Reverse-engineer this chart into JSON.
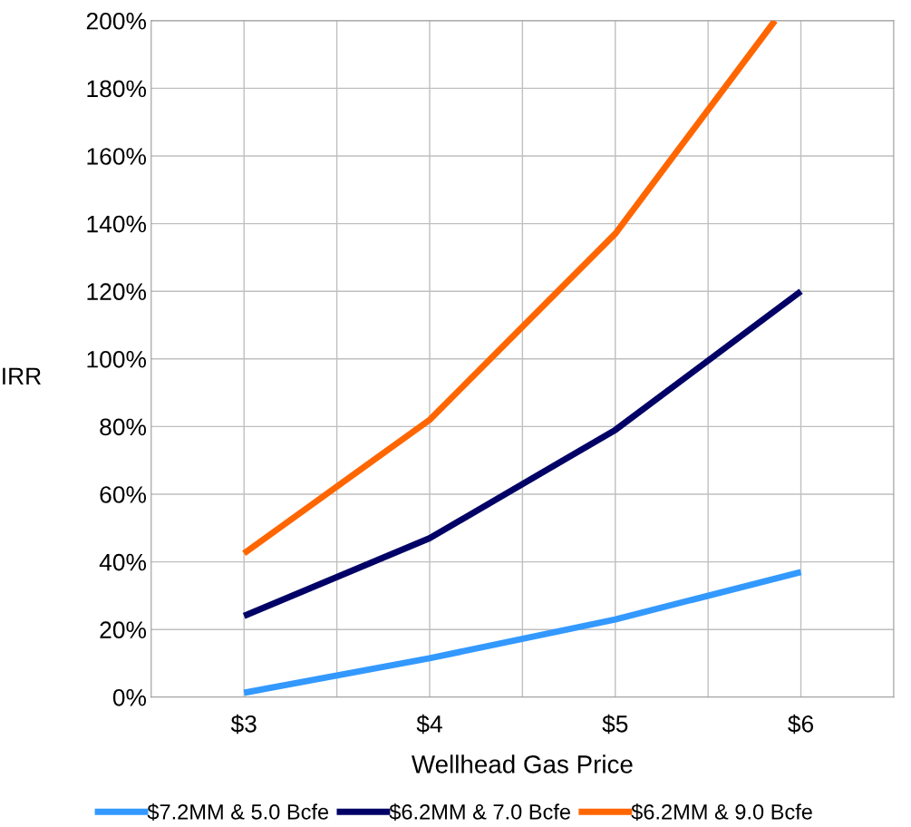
{
  "chart_data": {
    "type": "line",
    "xlabel": "Wellhead Gas Price",
    "ylabel": "IRR",
    "x": [
      3,
      4,
      5,
      6
    ],
    "series": [
      {
        "name": "$7.2MM & 5.0 Bcfe",
        "color": "#3399ff",
        "values": [
          1.3,
          11.5,
          23,
          37
        ]
      },
      {
        "name": "$6.2MM & 7.0 Bcfe",
        "color": "#000066",
        "values": [
          24,
          47,
          79,
          120
        ]
      },
      {
        "name": "$6.2MM & 9.0 Bcfe",
        "color": "#ff6600",
        "x": [
          3,
          4,
          5,
          5.86
        ],
        "values": [
          42.5,
          82,
          137,
          200
        ]
      }
    ],
    "xlim": [
      2.5,
      6.5
    ],
    "xticks": [
      {
        "value": 3,
        "label": "$3"
      },
      {
        "value": 3.5,
        "label": null
      },
      {
        "value": 4,
        "label": "$4"
      },
      {
        "value": 4.5,
        "label": null
      },
      {
        "value": 5,
        "label": "$5"
      },
      {
        "value": 5.5,
        "label": null
      },
      {
        "value": 6,
        "label": "$6"
      }
    ],
    "ylim": [
      0,
      200
    ],
    "yticks": [
      {
        "value": 0,
        "label": "0%"
      },
      {
        "value": 20,
        "label": "20%"
      },
      {
        "value": 40,
        "label": "40%"
      },
      {
        "value": 60,
        "label": "60%"
      },
      {
        "value": 80,
        "label": "80%"
      },
      {
        "value": 100,
        "label": "100%"
      },
      {
        "value": 120,
        "label": "120%"
      },
      {
        "value": 140,
        "label": "140%"
      },
      {
        "value": 160,
        "label": "160%"
      },
      {
        "value": 180,
        "label": "180%"
      },
      {
        "value": 200,
        "label": "200%"
      }
    ],
    "grid": true,
    "legend": "bottom",
    "marker": "none",
    "line_style": "solid"
  }
}
